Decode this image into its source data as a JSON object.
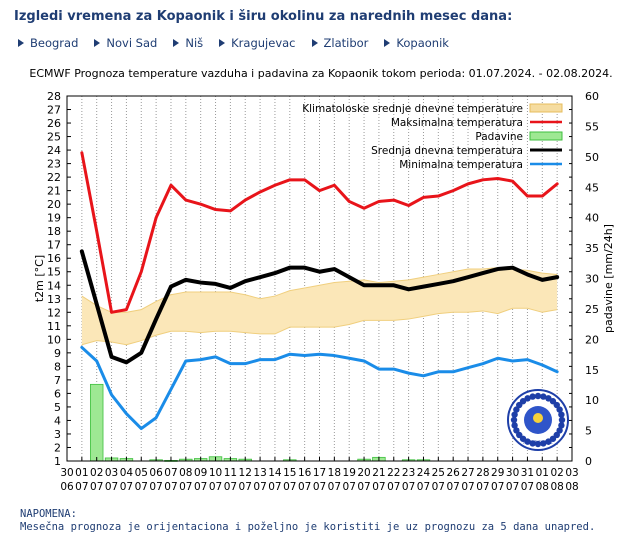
{
  "header": {
    "title": "Izgledi vremena za Kopaonik i širu okolinu za narednih mesec dana:"
  },
  "nav": {
    "items": [
      {
        "label": "Beograd"
      },
      {
        "label": "Novi Sad"
      },
      {
        "label": "Niš"
      },
      {
        "label": "Kragujevac"
      },
      {
        "label": "Zlatibor"
      },
      {
        "label": "Kopaonik"
      }
    ]
  },
  "note": {
    "heading": "NAPOMENA:",
    "text": "Mesečna prognoza je orijentaciona i poželjno je koristiti je uz prognozu za 5 dana unapred."
  },
  "chart_data": {
    "type": "line",
    "title": "ECMWF Prognoza temperature  vazduha i padavina za Kopaonik tokom perioda: 01.07.2024. - 02.08.2024.",
    "ylabel": "t2m [°C]",
    "y2label": "padavine [mm/24h]",
    "ylim": [
      1,
      28
    ],
    "y2lim": [
      0,
      60
    ],
    "y_ticks": [
      1,
      2,
      3,
      4,
      5,
      6,
      7,
      8,
      9,
      10,
      11,
      12,
      13,
      14,
      15,
      16,
      17,
      18,
      19,
      20,
      21,
      22,
      23,
      24,
      25,
      26,
      27,
      28
    ],
    "y2_ticks": [
      0,
      5,
      10,
      15,
      20,
      25,
      30,
      35,
      40,
      45,
      50,
      55,
      60
    ],
    "x_days": [
      "30",
      "01",
      "02",
      "03",
      "04",
      "05",
      "06",
      "07",
      "08",
      "09",
      "10",
      "11",
      "12",
      "13",
      "14",
      "15",
      "16",
      "17",
      "18",
      "19",
      "20",
      "21",
      "22",
      "23",
      "24",
      "25",
      "26",
      "27",
      "28",
      "29",
      "30",
      "31",
      "01",
      "02",
      "03"
    ],
    "x_months": [
      "06",
      "07",
      "07",
      "07",
      "07",
      "07",
      "07",
      "07",
      "07",
      "07",
      "07",
      "07",
      "07",
      "07",
      "07",
      "07",
      "07",
      "07",
      "07",
      "07",
      "07",
      "07",
      "07",
      "07",
      "07",
      "07",
      "07",
      "07",
      "07",
      "07",
      "07",
      "07",
      "08",
      "08",
      "08"
    ],
    "legend_position": "top-right",
    "grid": "vertical dotted",
    "legend": [
      {
        "label": "Klimatoloske srednje dnevne temperature",
        "color": "#f5dca0",
        "kind": "box"
      },
      {
        "label": "Maksimalna temperatura",
        "color": "#e8141a",
        "kind": "line"
      },
      {
        "label": "Padavine",
        "color": "#9ee893",
        "kind": "box"
      },
      {
        "label": "Srednja dnevna temperatura",
        "color": "#000000",
        "kind": "line"
      },
      {
        "label": "Minimalna temperatura",
        "color": "#1a8ce8",
        "kind": "line"
      }
    ],
    "clim_x": [
      0,
      1,
      2,
      3,
      4,
      5,
      6,
      7,
      8,
      9,
      10,
      11,
      12,
      13,
      14,
      15,
      16,
      17,
      18,
      19,
      20,
      21,
      22,
      23,
      24,
      25,
      26,
      27,
      28,
      29,
      30,
      31,
      32
    ],
    "clim_high": [
      13.2,
      12.5,
      12.0,
      12.0,
      12.2,
      12.8,
      13.3,
      13.5,
      13.5,
      13.5,
      13.5,
      13.3,
      13.0,
      13.2,
      13.6,
      13.8,
      14.0,
      14.2,
      14.3,
      14.4,
      14.2,
      14.3,
      14.4,
      14.6,
      14.8,
      15.0,
      15.2,
      15.2,
      15.3,
      15.2,
      15.1,
      14.9,
      14.8
    ],
    "clim_low": [
      9.6,
      9.9,
      9.8,
      9.6,
      9.9,
      10.3,
      10.6,
      10.6,
      10.5,
      10.6,
      10.6,
      10.5,
      10.4,
      10.4,
      10.9,
      10.9,
      10.9,
      10.9,
      11.1,
      11.4,
      11.4,
      11.4,
      11.5,
      11.7,
      11.9,
      12.0,
      12.0,
      12.1,
      11.9,
      12.3,
      12.3,
      12.0,
      12.2
    ],
    "series": [
      {
        "name": "Maksimalna temperatura",
        "color": "#e8141a",
        "width": 3,
        "x": [
          0,
          1,
          2,
          3,
          4,
          5,
          6,
          7,
          8,
          9,
          10,
          11,
          12,
          13,
          14,
          15,
          16,
          17,
          18,
          19,
          20,
          21,
          22,
          23,
          24,
          25,
          26,
          27,
          28,
          29,
          30,
          31,
          32
        ],
        "values": [
          23.8,
          18.0,
          12.0,
          12.2,
          15.0,
          19.0,
          21.4,
          20.3,
          20.0,
          19.6,
          19.5,
          20.3,
          20.9,
          21.4,
          21.8,
          21.8,
          21.0,
          21.4,
          20.2,
          19.7,
          20.2,
          20.3,
          19.9,
          20.5,
          20.6,
          21.0,
          21.5,
          21.8,
          21.9,
          21.7,
          20.6,
          20.6,
          21.5
        ]
      },
      {
        "name": "Srednja dnevna temperatura",
        "color": "#000000",
        "width": 4,
        "x": [
          0,
          1,
          2,
          3,
          4,
          5,
          6,
          7,
          8,
          9,
          10,
          11,
          12,
          13,
          14,
          15,
          16,
          17,
          18,
          19,
          20,
          21,
          22,
          23,
          24,
          25,
          26,
          27,
          28,
          29,
          30,
          31,
          32
        ],
        "values": [
          16.5,
          12.6,
          8.7,
          8.3,
          9.0,
          11.5,
          13.9,
          14.4,
          14.2,
          14.1,
          13.8,
          14.3,
          14.6,
          14.9,
          15.3,
          15.3,
          15.0,
          15.2,
          14.6,
          14.0,
          14.0,
          14.0,
          13.7,
          13.9,
          14.1,
          14.3,
          14.6,
          14.9,
          15.2,
          15.3,
          14.8,
          14.4,
          14.6
        ]
      },
      {
        "name": "Minimalna temperatura",
        "color": "#1a8ce8",
        "width": 3,
        "x": [
          0,
          1,
          2,
          3,
          4,
          5,
          6,
          7,
          8,
          9,
          10,
          11,
          12,
          13,
          14,
          15,
          16,
          17,
          18,
          19,
          20,
          21,
          22,
          23,
          24,
          25,
          26,
          27,
          28,
          29,
          30,
          31,
          32
        ],
        "values": [
          9.4,
          8.4,
          5.9,
          4.5,
          3.4,
          4.2,
          6.3,
          8.4,
          8.5,
          8.7,
          8.2,
          8.2,
          8.5,
          8.5,
          8.9,
          8.8,
          8.9,
          8.8,
          8.6,
          8.4,
          7.8,
          7.8,
          7.5,
          7.3,
          7.6,
          7.6,
          7.9,
          8.2,
          8.6,
          8.4,
          8.5,
          8.1,
          7.6
        ]
      }
    ],
    "precip_x": [
      1,
      2,
      3,
      5,
      6,
      7,
      8,
      9,
      10,
      11,
      14,
      19,
      20,
      22,
      23
    ],
    "precip_values": [
      12.6,
      0.5,
      0.4,
      0.2,
      0.1,
      0.3,
      0.4,
      0.7,
      0.4,
      0.3,
      0.2,
      0.3,
      0.6,
      0.2,
      0.2
    ],
    "precip_color": "#9ee893",
    "logo_text": "RHMZ SRBIJE"
  }
}
